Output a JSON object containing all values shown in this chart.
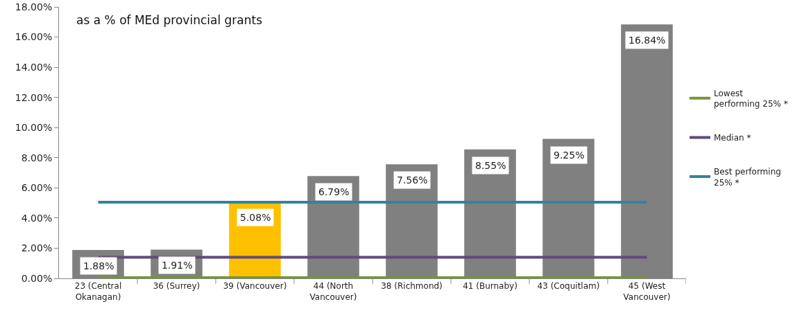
{
  "chart_data": {
    "type": "bar",
    "title": "as a % of MEd provincial grants",
    "categories": [
      "23 (Central Okanagan)",
      "36 (Surrey)",
      "39 (Vancouver)",
      "44 (North Vancouver)",
      "38 (Richmond)",
      "41 (Burnaby)",
      "43 (Coquitlam)",
      "45 (West Vancouver)"
    ],
    "series": [
      {
        "values": [
          1.88,
          1.91,
          5.08,
          6.79,
          7.56,
          8.55,
          9.25,
          16.84
        ],
        "colors": [
          "#808080",
          "#808080",
          "#ffc000",
          "#808080",
          "#808080",
          "#808080",
          "#808080",
          "#808080"
        ],
        "value_labels": [
          "1.88%",
          "1.91%",
          "5.08%",
          "6.79%",
          "7.56%",
          "8.55%",
          "9.25%",
          "16.84%"
        ]
      },
      {
        "type": "line",
        "name": "Lowest performing 25% *",
        "color": "#77933c",
        "values": [
          0.05,
          0.05,
          0.05,
          0.05,
          0.05,
          0.05,
          0.05,
          0.05
        ]
      },
      {
        "type": "line",
        "name": "Median *",
        "color": "#604a7b",
        "values": [
          1.4,
          1.4,
          1.4,
          1.4,
          1.4,
          1.4,
          1.4,
          1.4
        ]
      },
      {
        "type": "line",
        "name": "Best performing 25% *",
        "color": "#31849b",
        "values": [
          5.05,
          5.05,
          5.05,
          5.05,
          5.05,
          5.05,
          5.05,
          5.05
        ]
      }
    ],
    "ylim": [
      0,
      18
    ],
    "yticks": [
      {
        "value": 0,
        "label": "0.00%"
      },
      {
        "value": 2,
        "label": "2.00%"
      },
      {
        "value": 4,
        "label": "4.00%"
      },
      {
        "value": 6,
        "label": "6.00%"
      },
      {
        "value": 8,
        "label": "8.00%"
      },
      {
        "value": 10,
        "label": "10.00%"
      },
      {
        "value": 12,
        "label": "12.00%"
      },
      {
        "value": 14,
        "label": "14.00%"
      },
      {
        "value": 16,
        "label": "16.00%"
      },
      {
        "value": 18,
        "label": "18.00%"
      }
    ],
    "grid": false,
    "legend": "right",
    "line_style": "solid",
    "marker": "none"
  }
}
